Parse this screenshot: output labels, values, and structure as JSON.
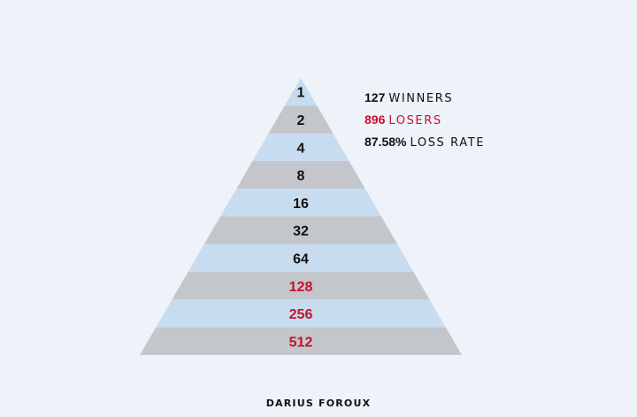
{
  "pyramid": {
    "levels": [
      {
        "value": "1",
        "highlight": false
      },
      {
        "value": "2",
        "highlight": false
      },
      {
        "value": "4",
        "highlight": false
      },
      {
        "value": "8",
        "highlight": false
      },
      {
        "value": "16",
        "highlight": false
      },
      {
        "value": "32",
        "highlight": false
      },
      {
        "value": "64",
        "highlight": false
      },
      {
        "value": "128",
        "highlight": true
      },
      {
        "value": "256",
        "highlight": true
      },
      {
        "value": "512",
        "highlight": true
      }
    ],
    "colors": {
      "band_light": "#c8dcf0",
      "band_dark": "#c3c6cb",
      "text_normal": "#111111",
      "text_highlight": "#c8102e"
    }
  },
  "stats": {
    "winners": {
      "number": "127",
      "label": "WINNERS",
      "color": "#111111"
    },
    "losers": {
      "number": "896",
      "label": "LOSERS",
      "color": "#c8102e"
    },
    "loss_rate": {
      "number": "87.58%",
      "label": "LOSS RATE",
      "color": "#111111"
    }
  },
  "signature": "DARIUS FOROUX"
}
